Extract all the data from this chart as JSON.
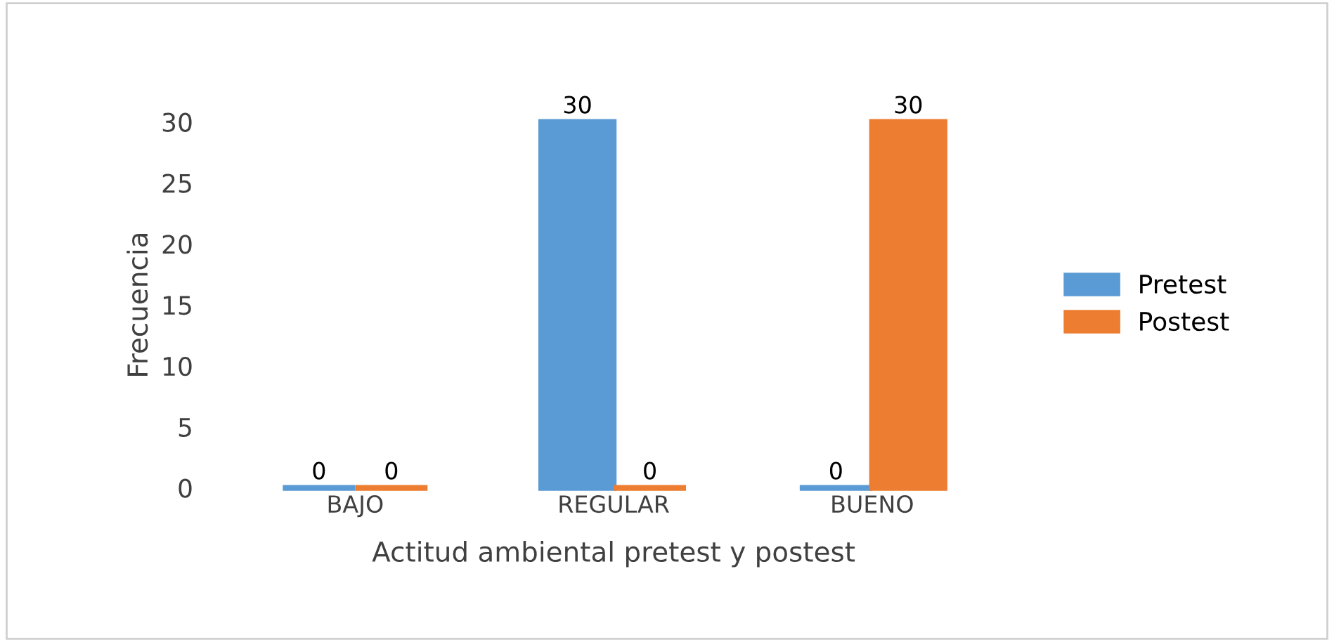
{
  "chart_data": {
    "type": "bar",
    "xlabel": "Actitud ambiental pretest y postest",
    "ylabel": "Frecuencia",
    "categories": [
      "BAJO",
      "REGULAR",
      "BUENO"
    ],
    "series": [
      {
        "name": "Pretest",
        "color": "#5b9bd5",
        "values": [
          0,
          30,
          0
        ]
      },
      {
        "name": "Postest",
        "color": "#ed7d31",
        "values": [
          0,
          0,
          30
        ]
      }
    ],
    "ylim": [
      0,
      30
    ],
    "yticks": [
      0,
      5,
      10,
      15,
      20,
      25,
      30
    ],
    "data_labels": true,
    "grid": false,
    "legend": "right"
  }
}
